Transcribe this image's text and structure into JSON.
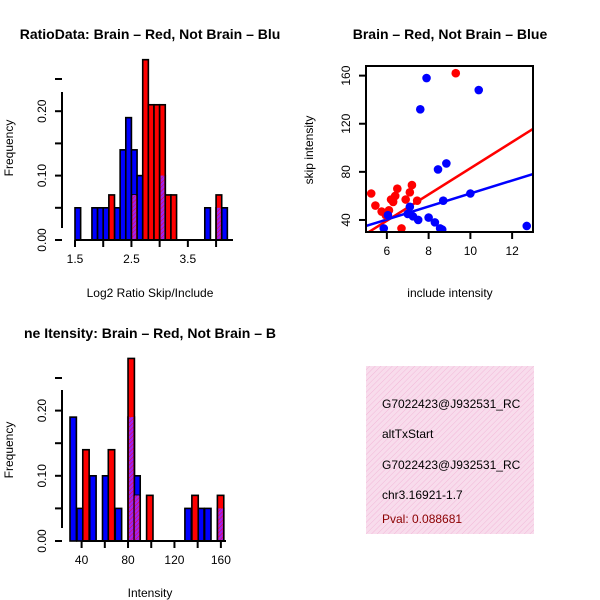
{
  "colors": {
    "brain": "#ff0000",
    "not_brain": "#0000ff",
    "overlap": "#a020f0",
    "pval": "#8b0000",
    "panel_bg": "#f8dcec",
    "panel_hatch": "#f2b8d8"
  },
  "chart_data": [
    {
      "type": "bar",
      "title": "RatioData: Brain – Red, Not Brain – Blu",
      "xlabel": "Log2 Ratio Skip/Include",
      "ylabel": "Frequency",
      "x_ticks": [
        "1.5",
        "2.5",
        "3.5"
      ],
      "x_tick_values": [
        1.5,
        2.5,
        3.5
      ],
      "y_ticks": [
        "0.00",
        "0.10",
        "0.20"
      ],
      "y_tick_values": [
        0,
        0.1,
        0.2
      ],
      "xlim": [
        1.5,
        4.3
      ],
      "ylim": [
        0,
        0.25
      ],
      "bin_width": 0.1,
      "series": [
        {
          "name": "Not Brain",
          "color": "#0000ff",
          "bins": [
            {
              "x": 1.5,
              "h": 0.05
            },
            {
              "x": 1.8,
              "h": 0.05
            },
            {
              "x": 1.9,
              "h": 0.05
            },
            {
              "x": 2.0,
              "h": 0.05
            },
            {
              "x": 2.2,
              "h": 0.05
            },
            {
              "x": 2.3,
              "h": 0.14
            },
            {
              "x": 2.4,
              "h": 0.19
            },
            {
              "x": 2.5,
              "h": 0.14
            },
            {
              "x": 2.6,
              "h": 0.1
            },
            {
              "x": 3.0,
              "h": 0.1
            },
            {
              "x": 3.8,
              "h": 0.05
            },
            {
              "x": 4.0,
              "h": 0.05
            },
            {
              "x": 4.1,
              "h": 0.05
            }
          ]
        },
        {
          "name": "Brain",
          "color": "#ff0000",
          "bins": [
            {
              "x": 2.1,
              "h": 0.07
            },
            {
              "x": 2.5,
              "h": 0.07
            },
            {
              "x": 2.7,
              "h": 0.28
            },
            {
              "x": 2.8,
              "h": 0.21
            },
            {
              "x": 2.9,
              "h": 0.21
            },
            {
              "x": 3.0,
              "h": 0.21
            },
            {
              "x": 3.1,
              "h": 0.07
            },
            {
              "x": 3.2,
              "h": 0.07
            },
            {
              "x": 4.0,
              "h": 0.07
            }
          ]
        }
      ]
    },
    {
      "type": "scatter",
      "title": "Brain – Red, Not Brain – Blue",
      "xlabel": "include intensity",
      "ylabel": "skip intensity",
      "x_ticks": [
        "6",
        "8",
        "10",
        "12"
      ],
      "x_tick_values": [
        6,
        8,
        10,
        12
      ],
      "y_ticks": [
        "40",
        "80",
        "120",
        "160"
      ],
      "y_tick_values": [
        40,
        80,
        120,
        160
      ],
      "xlim": [
        5.0,
        13.0
      ],
      "ylim": [
        30,
        168
      ],
      "series": [
        {
          "name": "Brain",
          "color": "#ff0000",
          "points": [
            [
              5.25,
              62
            ],
            [
              5.45,
              52
            ],
            [
              5.75,
              47
            ],
            [
              5.95,
              44
            ],
            [
              6.1,
              48
            ],
            [
              6.2,
              57
            ],
            [
              6.3,
              55
            ],
            [
              6.4,
              60
            ],
            [
              6.5,
              66
            ],
            [
              6.7,
              33
            ],
            [
              6.9,
              57
            ],
            [
              7.1,
              63
            ],
            [
              7.2,
              69
            ],
            [
              7.45,
              56
            ],
            [
              9.3,
              162
            ]
          ],
          "fit": {
            "intercept": -26,
            "slope": 10.9
          }
        },
        {
          "name": "Not Brain",
          "color": "#0000ff",
          "points": [
            [
              5.85,
              33
            ],
            [
              6.05,
              44
            ],
            [
              7.0,
              45
            ],
            [
              7.1,
              51
            ],
            [
              7.25,
              43
            ],
            [
              7.5,
              40
            ],
            [
              7.6,
              132
            ],
            [
              7.9,
              158
            ],
            [
              8.0,
              42
            ],
            [
              8.3,
              38
            ],
            [
              8.45,
              82
            ],
            [
              8.55,
              33
            ],
            [
              8.65,
              32
            ],
            [
              8.7,
              56
            ],
            [
              8.85,
              87
            ],
            [
              10.0,
              62
            ],
            [
              10.4,
              148
            ],
            [
              12.7,
              35
            ]
          ],
          "fit": {
            "intercept": 8,
            "slope": 5.4
          }
        }
      ]
    },
    {
      "type": "bar",
      "title": "ne Itensity: Brain – Red, Not Brain – B",
      "xlabel": "Intensity",
      "ylabel": "Frequency",
      "x_ticks": [
        "40",
        "80",
        "120",
        "160"
      ],
      "x_tick_values": [
        40,
        80,
        120,
        160
      ],
      "y_ticks": [
        "0.00",
        "0.10",
        "0.20"
      ],
      "y_tick_values": [
        0,
        0.1,
        0.2
      ],
      "xlim": [
        30,
        167
      ],
      "ylim": [
        0,
        0.25
      ],
      "bin_width": 5.5,
      "series": [
        {
          "name": "Not Brain",
          "color": "#0000ff",
          "bins": [
            {
              "x": 30,
              "h": 0.19
            },
            {
              "x": 36,
              "h": 0.05
            },
            {
              "x": 47,
              "h": 0.1
            },
            {
              "x": 58,
              "h": 0.1
            },
            {
              "x": 69,
              "h": 0.05
            },
            {
              "x": 80,
              "h": 0.19
            },
            {
              "x": 85,
              "h": 0.1
            },
            {
              "x": 129,
              "h": 0.05
            },
            {
              "x": 140,
              "h": 0.05
            },
            {
              "x": 146,
              "h": 0.05
            },
            {
              "x": 157,
              "h": 0.05
            }
          ]
        },
        {
          "name": "Brain",
          "color": "#ff0000",
          "bins": [
            {
              "x": 41,
              "h": 0.14
            },
            {
              "x": 63,
              "h": 0.14
            },
            {
              "x": 80,
              "h": 0.28
            },
            {
              "x": 85,
              "h": 0.07
            },
            {
              "x": 96,
              "h": 0.07
            },
            {
              "x": 135,
              "h": 0.07
            },
            {
              "x": 157,
              "h": 0.07
            }
          ]
        }
      ]
    }
  ],
  "info_panel": {
    "gene_id": "G7022423@J932531_RC",
    "event_type": "altTxStart",
    "gene_id_2": "G7022423@J932531_RC",
    "location": "chr3.16921-1.7",
    "pval": "Pval: 0.088681"
  }
}
